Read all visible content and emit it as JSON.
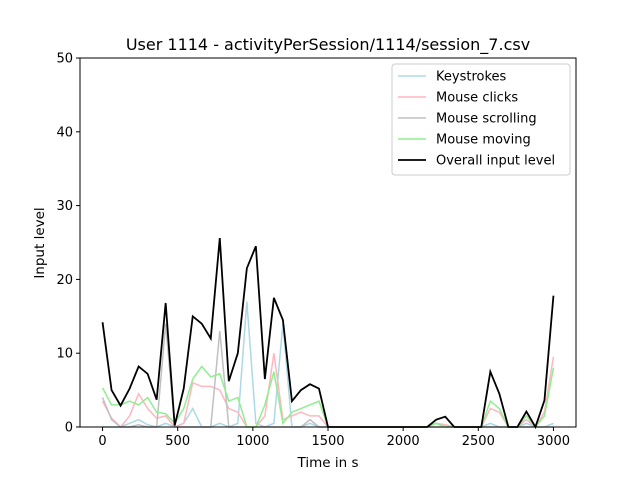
{
  "chart_data": {
    "type": "line",
    "title": "User 1114 - activityPerSession/1114/session_7.csv",
    "xlabel": "Time in s",
    "ylabel": "Input level",
    "xlim": [
      -150,
      3150
    ],
    "ylim": [
      0,
      50
    ],
    "xticks": [
      0,
      500,
      1000,
      1500,
      2000,
      2500,
      3000
    ],
    "yticks": [
      0,
      10,
      20,
      30,
      40,
      50
    ],
    "grid": false,
    "legend_position": "top-right",
    "x": [
      0,
      60,
      120,
      180,
      240,
      300,
      360,
      420,
      480,
      540,
      600,
      660,
      720,
      780,
      840,
      900,
      960,
      1020,
      1080,
      1140,
      1200,
      1260,
      1320,
      1380,
      1440,
      1500,
      1560,
      1620,
      1680,
      1740,
      1800,
      1860,
      1920,
      1980,
      2040,
      2100,
      2160,
      2220,
      2280,
      2340,
      2400,
      2460,
      2520,
      2580,
      2640,
      2700,
      2760,
      2820,
      2880,
      2940,
      3000
    ],
    "series": [
      {
        "name": "Keystrokes",
        "color": "#add8e6",
        "values": [
          0,
          0,
          0,
          0.5,
          1,
          0.3,
          0,
          0.5,
          0,
          0.5,
          2.5,
          0,
          0,
          0.5,
          0,
          0.5,
          17,
          0.5,
          0,
          0.5,
          14,
          0,
          0,
          0.5,
          0,
          0,
          0,
          0,
          0,
          0,
          0,
          0,
          0,
          0,
          0,
          0,
          0,
          0.5,
          0,
          0,
          0,
          0,
          0,
          0.5,
          0,
          0,
          0,
          0.5,
          0,
          0,
          0.5
        ]
      },
      {
        "name": "Mouse clicks",
        "color": "#ffb6c1",
        "values": [
          3.5,
          1.2,
          0,
          1.5,
          4.5,
          2.5,
          1.2,
          1.5,
          0,
          0.5,
          6,
          5.5,
          5.5,
          5,
          2.5,
          2,
          0,
          0,
          1.5,
          10,
          1,
          1.5,
          2,
          1.5,
          1.5,
          0,
          0,
          0,
          0,
          0,
          0,
          0,
          0,
          0,
          0,
          0,
          0,
          0.5,
          0.3,
          0,
          0,
          0,
          0,
          2.5,
          2,
          0,
          0,
          1,
          0,
          2,
          9.5
        ]
      },
      {
        "name": "Mouse scrolling",
        "color": "#c0c0c0",
        "values": [
          4,
          1,
          0,
          0,
          0.3,
          0,
          0,
          14,
          0,
          0,
          0,
          0,
          0,
          13,
          0,
          0,
          0,
          0,
          0,
          0,
          0,
          0,
          0,
          1,
          0,
          0,
          0,
          0,
          0,
          0,
          0,
          0,
          0,
          0,
          0,
          0,
          0,
          0,
          0,
          0,
          0,
          0,
          0,
          0,
          0,
          0,
          0,
          0,
          0,
          0,
          0
        ]
      },
      {
        "name": "Mouse moving",
        "color": "#90ee90",
        "values": [
          5.3,
          3,
          3,
          3.5,
          3,
          4,
          2,
          1.8,
          0.5,
          2.5,
          6.5,
          8.2,
          6.8,
          7.2,
          3.5,
          4,
          0,
          0,
          3,
          7.5,
          0.5,
          2,
          2.5,
          3,
          3.5,
          0,
          0,
          0,
          0,
          0,
          0,
          0,
          0,
          0,
          0,
          0,
          0,
          0.5,
          0,
          0,
          0,
          0,
          0,
          3.5,
          2.5,
          0,
          0,
          1.5,
          0,
          1.5,
          8
        ]
      },
      {
        "name": "Overall input level",
        "color": "#000000",
        "values": [
          14.2,
          5,
          2.9,
          5.2,
          8.2,
          7.2,
          3.7,
          16.8,
          0.2,
          5.2,
          15,
          14,
          12,
          25.6,
          6.2,
          10,
          21.5,
          24.5,
          6.5,
          17.5,
          14.5,
          3.5,
          5,
          5.8,
          5.2,
          0,
          0,
          0,
          0,
          0,
          0,
          0,
          0,
          0,
          0,
          0,
          0,
          1,
          1.4,
          0,
          0,
          0,
          0,
          7.5,
          4.5,
          0,
          0,
          2.1,
          0,
          3.6,
          17.8
        ]
      }
    ]
  }
}
